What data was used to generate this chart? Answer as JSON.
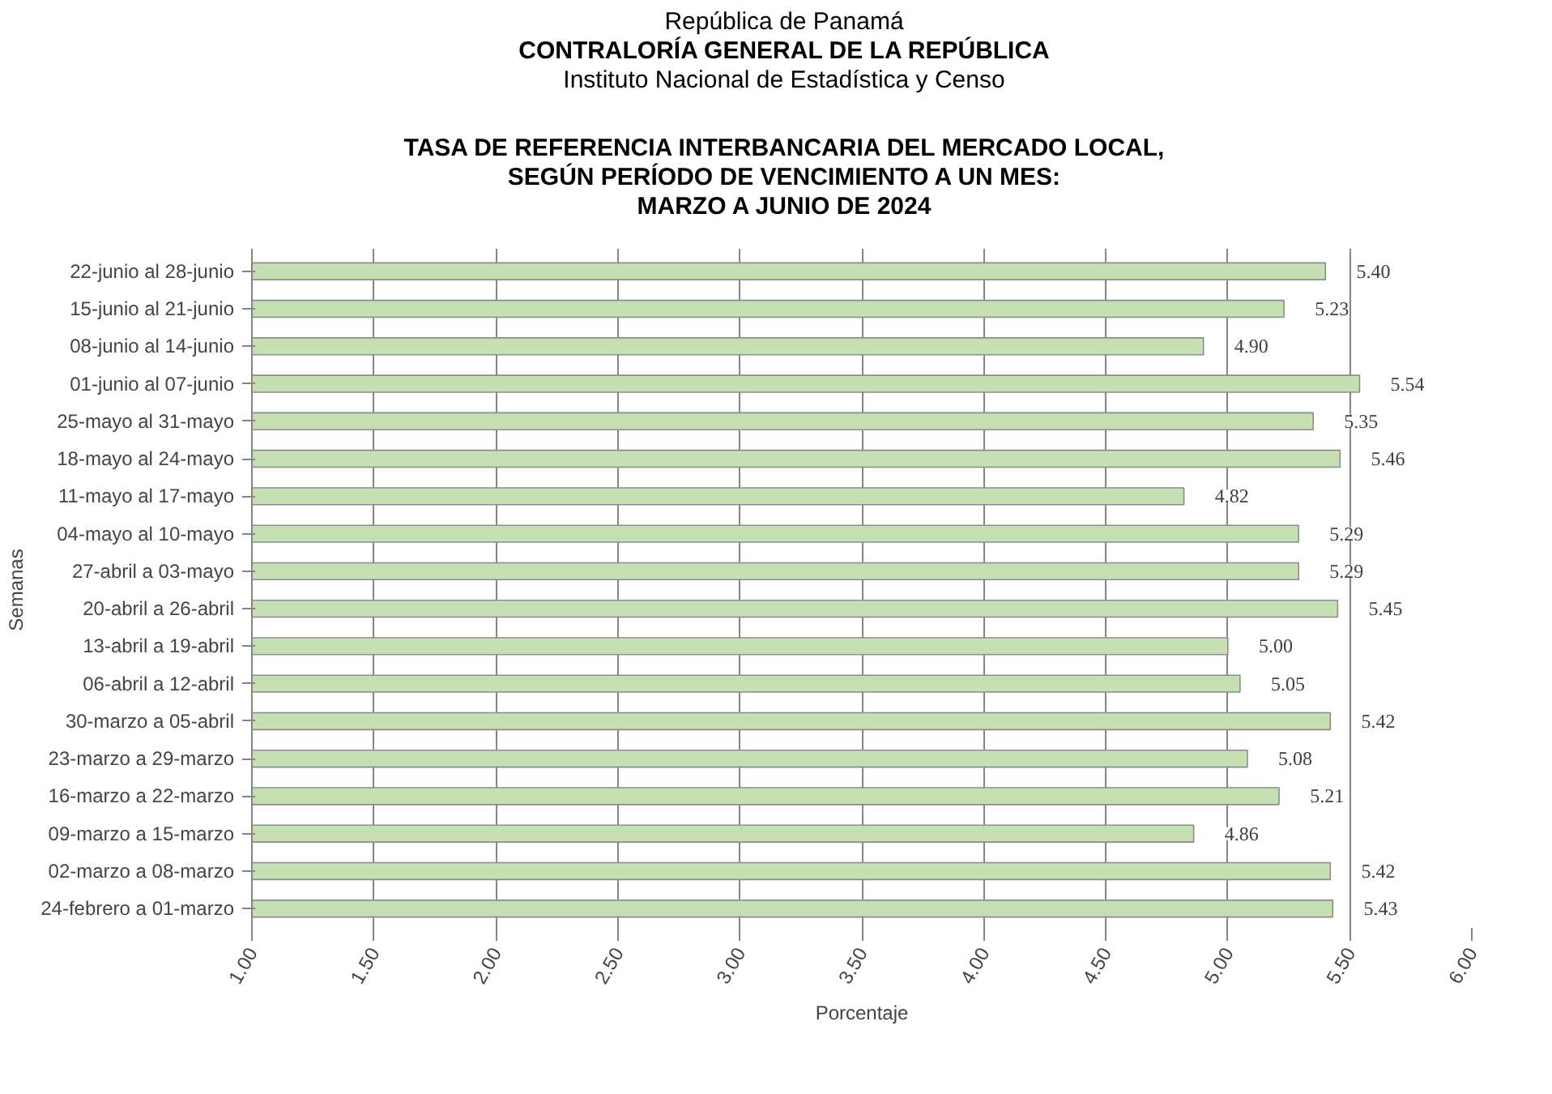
{
  "chart_data": {
    "type": "bar",
    "orientation": "horizontal",
    "subtitle": "República de Panamá\nCONTRALORÍA GENERAL DE LA REPÚBLICA\nInstituto  Nacional de Estadística y Censo",
    "title": "TASA DE REFERENCIA INTERBANCARIA DEL MERCADO LOCAL,\nSEGÚN PERÍODO DE VENCIMIENTO A UN MES:\nMARZO  A JUNIO DE 2024",
    "xlabel": "Porcentaje",
    "ylabel": "Semanas",
    "categories": [
      "22-junio al 28-junio",
      "15-junio al 21-junio",
      "08-junio al 14-junio",
      "01-junio al 07-junio",
      "25-mayo al 31-mayo",
      "18-mayo al 24-mayo",
      "11-mayo al 17-mayo",
      "04-mayo al 10-mayo",
      "27-abril a 03-mayo",
      "20-abril a 26-abril",
      "13-abril a 19-abril",
      "06-abril a 12-abril",
      "30-marzo a 05-abril",
      "23-marzo a 29-marzo",
      "16-marzo a 22-marzo",
      "09-marzo a 15-marzo",
      "02-marzo a 08-marzo",
      "24-febrero a 01-marzo"
    ],
    "values": [
      5.4,
      5.23,
      4.9,
      5.54,
      5.35,
      5.46,
      4.82,
      5.29,
      5.29,
      5.45,
      5.0,
      5.05,
      5.42,
      5.08,
      5.21,
      4.86,
      5.42,
      5.43
    ],
    "value_labels": [
      "5.40",
      "5.23",
      "4.90",
      "5.54",
      "5.35",
      "5.46",
      "4.82",
      "5.29",
      "5.29",
      "5.45",
      "5.00",
      "5.05",
      "5.42",
      "5.08",
      "5.21",
      "4.86",
      "5.42",
      "5.43"
    ],
    "color": "#c6e0b4",
    "xlim": [
      1,
      6
    ],
    "xticks": [
      {
        "value": 1,
        "label": "1.00"
      },
      {
        "value": 1.5,
        "label": "1.50"
      },
      {
        "value": 2,
        "label": "2.00"
      },
      {
        "value": 2.5,
        "label": "2.50"
      },
      {
        "value": 3,
        "label": "3.00"
      },
      {
        "value": 3.5,
        "label": "3.50"
      },
      {
        "value": 4,
        "label": "4.00"
      },
      {
        "value": 4.5,
        "label": "4.50"
      },
      {
        "value": 5,
        "label": "5.00"
      },
      {
        "value": 5.5,
        "label": "5.50"
      },
      {
        "value": 6,
        "label": "6.00"
      }
    ],
    "grid": "x",
    "legend": false
  }
}
